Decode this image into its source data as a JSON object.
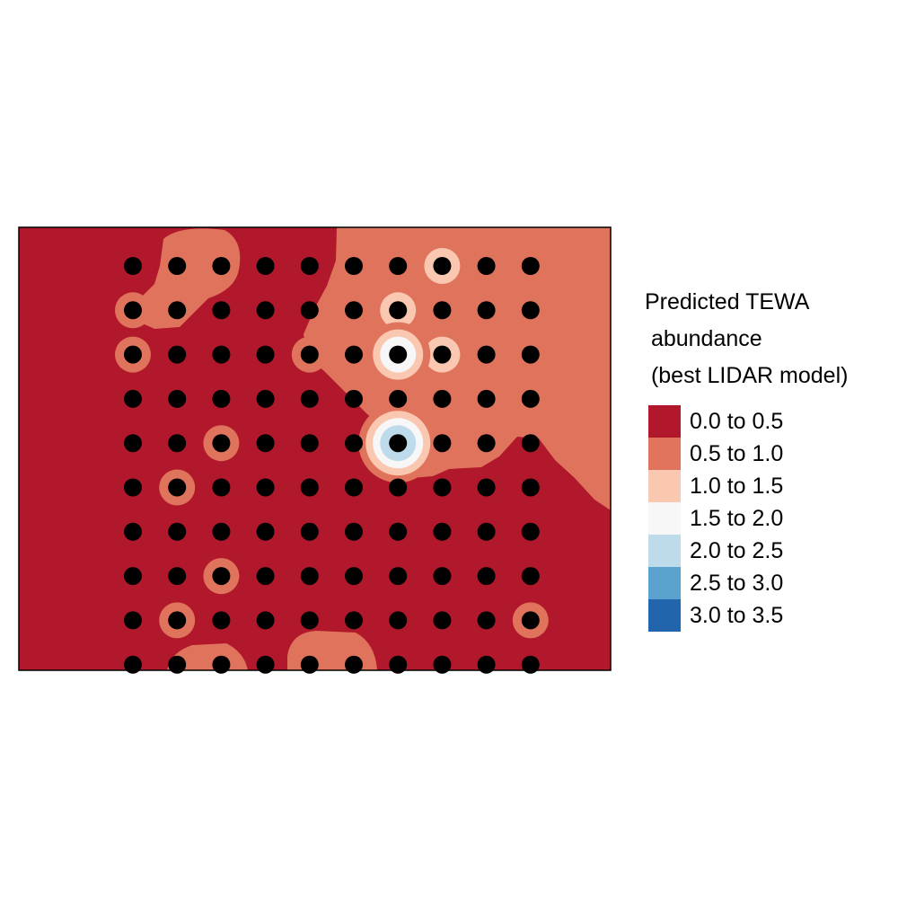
{
  "chart_data": {
    "type": "heatmap",
    "title": "",
    "xlabel": "",
    "ylabel": "",
    "legend": {
      "title_lines": [
        "Predicted TEWA",
        " abundance",
        " (best LIDAR model)"
      ],
      "placement": "right",
      "classes": [
        {
          "label": "0.0 to 0.5",
          "color": "#B2182B"
        },
        {
          "label": "0.5 to 1.0",
          "color": "#E0735C"
        },
        {
          "label": "1.0 to 1.5",
          "color": "#FAC8B1"
        },
        {
          "label": "1.5 to 2.0",
          "color": "#F7F7F7"
        },
        {
          "label": "2.0 to 2.5",
          "color": "#BDDBEB"
        },
        {
          "label": "2.5 to 3.0",
          "color": "#5BA3CF"
        },
        {
          "label": "3.0 to 3.5",
          "color": "#2166AC"
        }
      ]
    },
    "survey_grid": {
      "columns": 10,
      "rows": 10,
      "point_color": "#000000"
    },
    "hotspots": [
      {
        "col": 8,
        "row": 1,
        "class": 2
      },
      {
        "col": 7,
        "row": 2,
        "class": 2
      },
      {
        "col": 8,
        "row": 3,
        "class": 2
      },
      {
        "col": 7,
        "row": 3,
        "class": 3
      },
      {
        "col": 7,
        "row": 5,
        "class": 4
      },
      {
        "col": 3,
        "row": 5,
        "class": 1
      },
      {
        "col": 2,
        "row": 6,
        "class": 1
      },
      {
        "col": 3,
        "row": 8,
        "class": 1
      },
      {
        "col": 2,
        "row": 9,
        "class": 1
      },
      {
        "col": 10,
        "row": 9,
        "class": 1
      },
      {
        "col": 1,
        "row": 2,
        "class": 1
      },
      {
        "col": 1,
        "row": 3,
        "class": 1
      },
      {
        "col": 5,
        "row": 3,
        "class": 1
      }
    ]
  }
}
